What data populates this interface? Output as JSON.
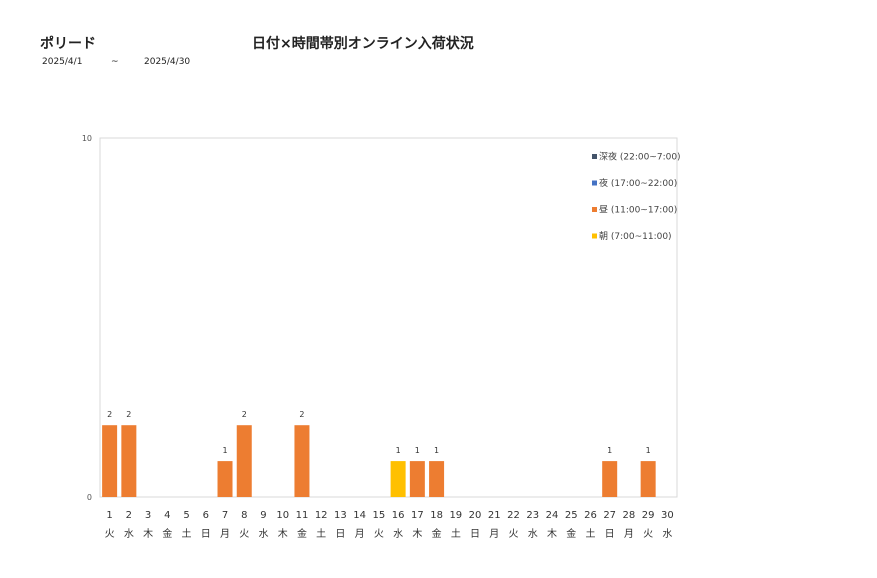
{
  "header": {
    "title_left": "ポリード",
    "title_main": "日付×時間帯別オンライン入荷状況",
    "date_start": "2025/4/1",
    "date_tilde": "~",
    "date_end": "2025/4/30"
  },
  "chart_data": {
    "type": "bar",
    "stacked": true,
    "title": "日付×時間帯別オンライン入荷状況",
    "categories": [
      "1",
      "2",
      "3",
      "4",
      "5",
      "6",
      "7",
      "8",
      "9",
      "10",
      "11",
      "12",
      "13",
      "14",
      "15",
      "16",
      "17",
      "18",
      "19",
      "20",
      "21",
      "22",
      "23",
      "24",
      "25",
      "26",
      "27",
      "28",
      "29",
      "30"
    ],
    "weekdays": [
      "火",
      "水",
      "木",
      "金",
      "土",
      "日",
      "月",
      "火",
      "水",
      "木",
      "金",
      "土",
      "日",
      "月",
      "火",
      "水",
      "木",
      "金",
      "土",
      "日",
      "月",
      "火",
      "水",
      "木",
      "金",
      "土",
      "日",
      "月",
      "火",
      "水"
    ],
    "ylim": [
      0,
      10
    ],
    "yticks": [
      0,
      10
    ],
    "grid": false,
    "legend_position": "top-right",
    "series": [
      {
        "name": "朝 (7:00~11:00)",
        "color": "#FFC000",
        "values": [
          0,
          0,
          0,
          0,
          0,
          0,
          0,
          0,
          0,
          0,
          0,
          0,
          0,
          0,
          0,
          1,
          0,
          0,
          0,
          0,
          0,
          0,
          0,
          0,
          0,
          0,
          0,
          0,
          0,
          0
        ]
      },
      {
        "name": "昼 (11:00~17:00)",
        "color": "#ED7D31",
        "values": [
          2,
          2,
          0,
          0,
          0,
          0,
          1,
          2,
          0,
          0,
          2,
          0,
          0,
          0,
          0,
          0,
          1,
          1,
          0,
          0,
          0,
          0,
          0,
          0,
          0,
          0,
          1,
          0,
          1,
          0
        ]
      },
      {
        "name": "夜 (17:00~22:00)",
        "color": "#4472C4",
        "values": [
          0,
          0,
          0,
          0,
          0,
          0,
          0,
          0,
          0,
          0,
          0,
          0,
          0,
          0,
          0,
          0,
          0,
          0,
          0,
          0,
          0,
          0,
          0,
          0,
          0,
          0,
          0,
          0,
          0,
          0
        ]
      },
      {
        "name": "深夜 (22:00~7:00)",
        "color": "#44546A",
        "values": [
          0,
          0,
          0,
          0,
          0,
          0,
          0,
          0,
          0,
          0,
          0,
          0,
          0,
          0,
          0,
          0,
          0,
          0,
          0,
          0,
          0,
          0,
          0,
          0,
          0,
          0,
          0,
          0,
          0,
          0
        ]
      }
    ],
    "legend_order": [
      "深夜 (22:00~7:00)",
      "夜 (17:00~22:00)",
      "昼 (11:00~17:00)",
      "朝 (7:00~11:00)"
    ],
    "axis_color": "#D9D9D9"
  }
}
